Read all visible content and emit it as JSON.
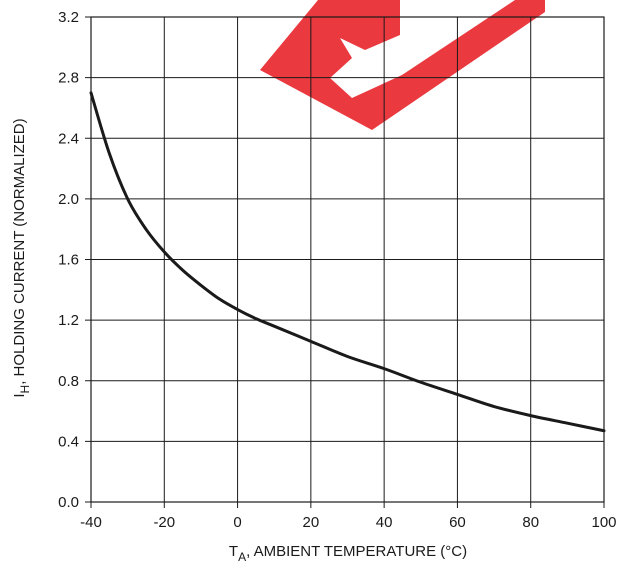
{
  "chart_data": {
    "type": "line",
    "xlabel": {
      "symbol": "T",
      "subscript": "A",
      "text": ", AMBIENT TEMPERATURE (°C)"
    },
    "ylabel": {
      "symbol": "I",
      "subscript": "H",
      "text": ",  HOLDING CURRENT (NORMALIZED)"
    },
    "xlim": [
      -40,
      100
    ],
    "ylim": [
      0.0,
      3.2
    ],
    "x_ticks": [
      "-40",
      "-20",
      "0",
      "20",
      "40",
      "60",
      "80",
      "100"
    ],
    "y_ticks": [
      "0.0",
      "0.4",
      "0.8",
      "1.2",
      "1.6",
      "2.0",
      "2.4",
      "2.8",
      "3.2"
    ],
    "grid": true,
    "line_color": "#1a1a1a",
    "grid_color": "#1a1a1a",
    "watermark_color": "#e8232a",
    "series": [
      {
        "x": [
          -40,
          -35,
          -30,
          -25,
          -20,
          -15,
          -10,
          -5,
          0,
          5,
          10,
          20,
          30,
          40,
          50,
          60,
          70,
          80,
          90,
          100
        ],
        "y": [
          2.7,
          2.3,
          2.0,
          1.8,
          1.65,
          1.53,
          1.43,
          1.34,
          1.27,
          1.21,
          1.16,
          1.06,
          0.96,
          0.88,
          0.79,
          0.71,
          0.63,
          0.57,
          0.52,
          0.47
        ]
      }
    ]
  }
}
